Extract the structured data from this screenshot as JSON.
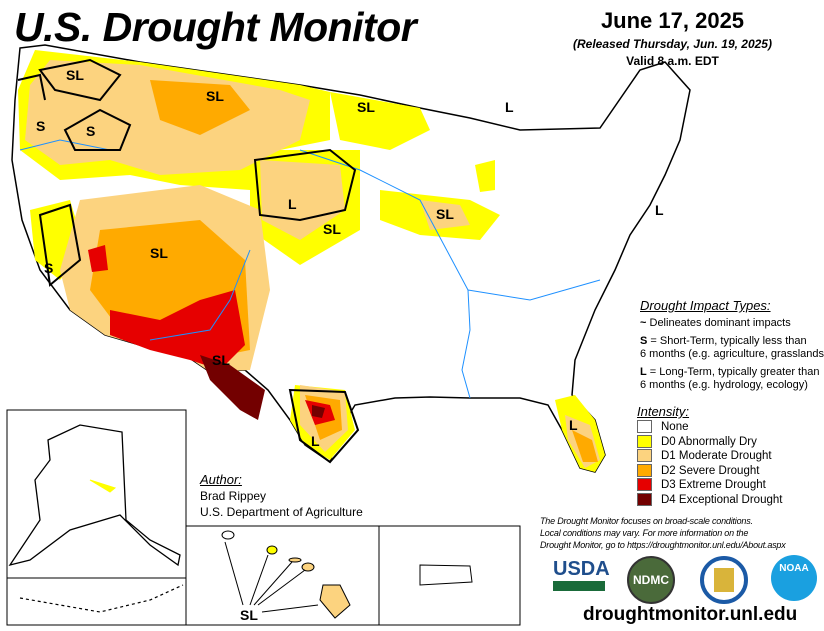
{
  "header": {
    "title": "U.S. Drought Monitor",
    "date": "June 17, 2025",
    "released": "(Released Thursday, Jun. 19, 2025)",
    "valid": "Valid 8 a.m. EDT"
  },
  "impact_legend": {
    "heading": "Drought Impact Types:",
    "line_label": "Delineates dominant impacts",
    "short_key": "S",
    "short_desc_1": " = Short-Term, typically less than",
    "short_desc_2": "6 months (e.g. agriculture, grasslands)",
    "long_key": "L",
    "long_desc_1": " = Long-Term, typically greater than",
    "long_desc_2": "6 months (e.g. hydrology, ecology)"
  },
  "intensity_legend": {
    "heading": "Intensity:",
    "items": [
      {
        "label": "None",
        "color": "#ffffff"
      },
      {
        "label": "D0 Abnormally Dry",
        "color": "#ffff00"
      },
      {
        "label": "D1 Moderate Drought",
        "color": "#fcd37f"
      },
      {
        "label": "D2 Severe Drought",
        "color": "#ffaa00"
      },
      {
        "label": "D3 Extreme Drought",
        "color": "#e60000"
      },
      {
        "label": "D4 Exceptional Drought",
        "color": "#730000"
      }
    ]
  },
  "author": {
    "heading": "Author:",
    "name": "Brad Rippey",
    "org": "U.S. Department of Agriculture"
  },
  "disclaimer": {
    "line1": "The Drought Monitor focuses on broad-scale conditions.",
    "line2": "Local conditions may vary. For more information on the",
    "line3": "Drought Monitor, go to https://droughtmonitor.unl.edu/About.aspx"
  },
  "logos": {
    "usda": "USDA",
    "ndmc": "NDMC",
    "noaa": "NOAA"
  },
  "website": "droughtmonitor.unl.edu",
  "map_labels": {
    "wa": "SL",
    "or_w": "S",
    "or_c": "S",
    "mt": "SL",
    "mn": "SL",
    "mi": "L",
    "wy": "L",
    "co": "SL",
    "ne": "SL",
    "ut": "SL",
    "ca": "S",
    "nm": "SL",
    "tx": "L",
    "il": "SL",
    "nj": "L",
    "fl": "L",
    "hi": "SL"
  }
}
